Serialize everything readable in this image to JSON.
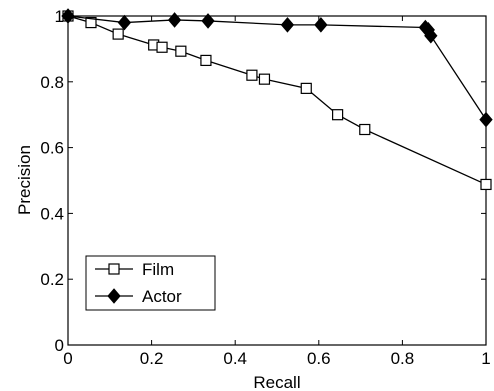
{
  "chart_data": {
    "type": "line",
    "title": "",
    "xlabel": "Recall",
    "ylabel": "Precision",
    "xlim": [
      0,
      1
    ],
    "ylim": [
      0,
      1
    ],
    "xticks": [
      "0",
      "0.2",
      "0.4",
      "0.6",
      "0.8",
      "1"
    ],
    "yticks": [
      "0",
      "0.2",
      "0.4",
      "0.6",
      "0.8",
      "1"
    ],
    "grid": false,
    "legend_position": "bottom-left",
    "series": [
      {
        "name": "Film",
        "marker": "square-open",
        "color": "#000000",
        "x": [
          0.0,
          0.055,
          0.12,
          0.205,
          0.225,
          0.27,
          0.33,
          0.44,
          0.47,
          0.57,
          0.645,
          0.71,
          1.0
        ],
        "y": [
          1.0,
          0.98,
          0.945,
          0.912,
          0.905,
          0.893,
          0.865,
          0.82,
          0.808,
          0.78,
          0.7,
          0.655,
          0.488
        ]
      },
      {
        "name": "Actor",
        "marker": "diamond-filled",
        "color": "#000000",
        "x": [
          0.0,
          0.135,
          0.255,
          0.335,
          0.525,
          0.605,
          0.855,
          0.862,
          0.868,
          1.0
        ],
        "y": [
          1.0,
          0.98,
          0.988,
          0.985,
          0.973,
          0.973,
          0.965,
          0.958,
          0.94,
          0.685
        ]
      }
    ]
  }
}
